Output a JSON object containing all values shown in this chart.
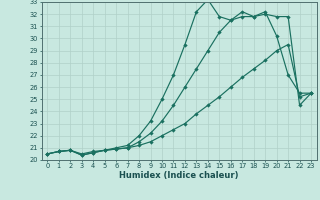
{
  "xlabel": "Humidex (Indice chaleur)",
  "bg_color": "#c8e8e0",
  "line_color": "#1a7060",
  "grid_color": "#b0d0c8",
  "xlim_min": -0.5,
  "xlim_max": 23.5,
  "ylim_min": 20,
  "ylim_max": 33,
  "xticks": [
    0,
    1,
    2,
    3,
    4,
    5,
    6,
    7,
    8,
    9,
    10,
    11,
    12,
    13,
    14,
    15,
    16,
    17,
    18,
    19,
    20,
    21,
    22,
    23
  ],
  "yticks": [
    20,
    21,
    22,
    23,
    24,
    25,
    26,
    27,
    28,
    29,
    30,
    31,
    32,
    33
  ],
  "line1_x": [
    0,
    1,
    2,
    3,
    4,
    5,
    6,
    7,
    8,
    9,
    10,
    11,
    12,
    13,
    14,
    15,
    16,
    17,
    18,
    19,
    20,
    21,
    22,
    23
  ],
  "line1_y": [
    20.5,
    20.7,
    20.8,
    20.5,
    20.7,
    20.8,
    20.9,
    21.0,
    21.2,
    21.5,
    22.0,
    22.5,
    23.0,
    23.8,
    24.5,
    25.2,
    26.0,
    26.8,
    27.5,
    28.2,
    29.0,
    29.5,
    25.2,
    25.5
  ],
  "line2_x": [
    0,
    1,
    2,
    3,
    4,
    5,
    6,
    7,
    8,
    9,
    10,
    11,
    12,
    13,
    14,
    15,
    16,
    17,
    18,
    19,
    20,
    21,
    22,
    23
  ],
  "line2_y": [
    20.5,
    20.7,
    20.8,
    20.4,
    20.6,
    20.8,
    20.9,
    21.0,
    21.5,
    22.2,
    23.2,
    24.5,
    26.0,
    27.5,
    29.0,
    30.5,
    31.5,
    32.2,
    31.8,
    32.2,
    30.2,
    27.0,
    25.5,
    25.5
  ],
  "line3_x": [
    0,
    1,
    2,
    3,
    4,
    5,
    6,
    7,
    8,
    9,
    10,
    11,
    12,
    13,
    14,
    15,
    16,
    17,
    18,
    19,
    20,
    21,
    22,
    23
  ],
  "line3_y": [
    20.5,
    20.7,
    20.8,
    20.4,
    20.6,
    20.8,
    21.0,
    21.2,
    22.0,
    23.2,
    25.0,
    27.0,
    29.5,
    32.2,
    33.2,
    31.8,
    31.5,
    31.8,
    31.8,
    32.0,
    31.8,
    31.8,
    24.5,
    25.5
  ]
}
